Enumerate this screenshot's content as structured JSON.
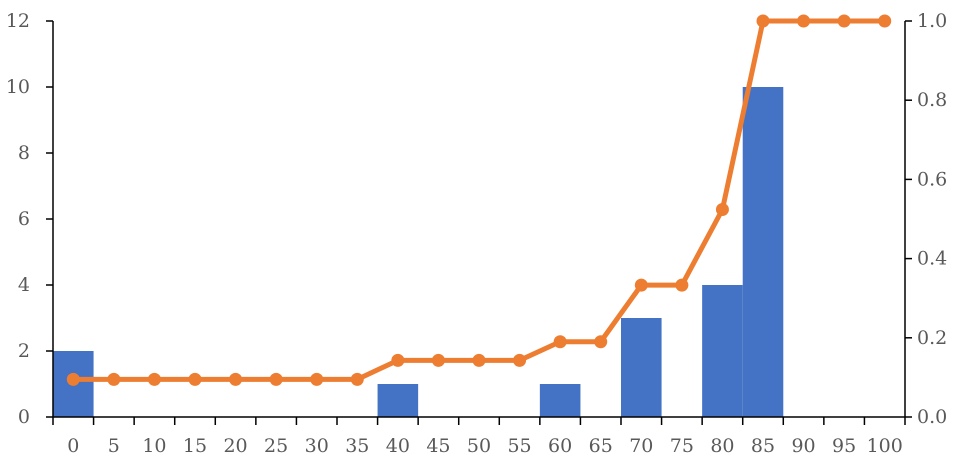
{
  "chart_data": {
    "type": "bar",
    "title": "",
    "xlabel": "",
    "ylabel": "",
    "categories": [
      "0",
      "5",
      "10",
      "15",
      "20",
      "25",
      "30",
      "35",
      "40",
      "45",
      "50",
      "55",
      "60",
      "65",
      "70",
      "75",
      "80",
      "85",
      "90",
      "95",
      "100"
    ],
    "series": [
      {
        "type": "bar",
        "axis": "left",
        "color": "#4472C4",
        "values": [
          2,
          0,
          0,
          0,
          0,
          0,
          0,
          0,
          1,
          0,
          0,
          0,
          1,
          0,
          3,
          0,
          4,
          10,
          0,
          0,
          0
        ]
      },
      {
        "type": "line",
        "axis": "right",
        "color": "#ED7D31",
        "markers": true,
        "values": [
          0.095,
          0.095,
          0.095,
          0.095,
          0.095,
          0.095,
          0.095,
          0.095,
          0.143,
          0.143,
          0.143,
          0.143,
          0.19,
          0.19,
          0.333,
          0.333,
          0.524,
          1.0,
          1.0,
          1.0,
          1.0
        ]
      }
    ],
    "ylim": [
      0,
      12
    ],
    "y2lim": [
      0,
      1.0
    ],
    "yticks": [
      "0",
      "2",
      "4",
      "6",
      "8",
      "10",
      "12"
    ],
    "y2ticks": [
      "0.0",
      "0.2",
      "0.4",
      "0.6",
      "0.8",
      "1.0"
    ],
    "grid": false,
    "legend": "none"
  }
}
